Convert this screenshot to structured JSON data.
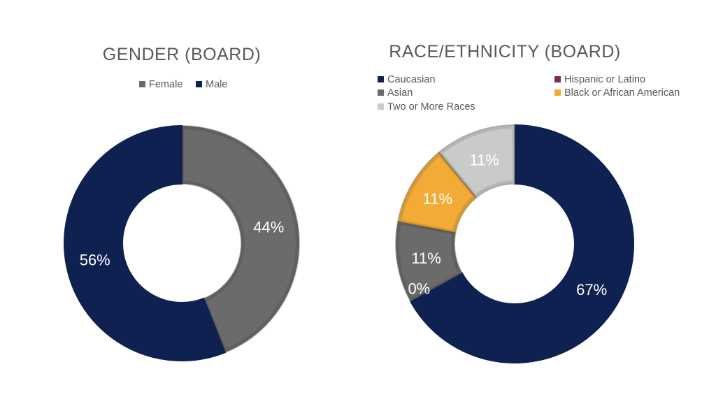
{
  "chart_data": [
    {
      "type": "pie",
      "title": "GENDER (BOARD)",
      "legend_position": "top",
      "series": [
        {
          "name": "Female",
          "value": 44,
          "label": "44%",
          "color": "#6b6b6b"
        },
        {
          "name": "Male",
          "value": 56,
          "label": "56%",
          "color": "#0f2150"
        }
      ]
    },
    {
      "type": "pie",
      "title": "RACE/ETHNICITY (BOARD)",
      "legend_position": "top",
      "series": [
        {
          "name": "Caucasian",
          "value": 67,
          "label": "67%",
          "color": "#0f2150"
        },
        {
          "name": "Hispanic or Latino",
          "value": 0,
          "label": "0%",
          "color": "#7a2e55"
        },
        {
          "name": "Asian",
          "value": 11,
          "label": "11%",
          "color": "#6b6b6b"
        },
        {
          "name": "Black or African American",
          "value": 11,
          "label": "11%",
          "color": "#f2ab37"
        },
        {
          "name": "Two or More Races",
          "value": 11,
          "label": "11%",
          "color": "#c9cbc9"
        }
      ]
    }
  ]
}
